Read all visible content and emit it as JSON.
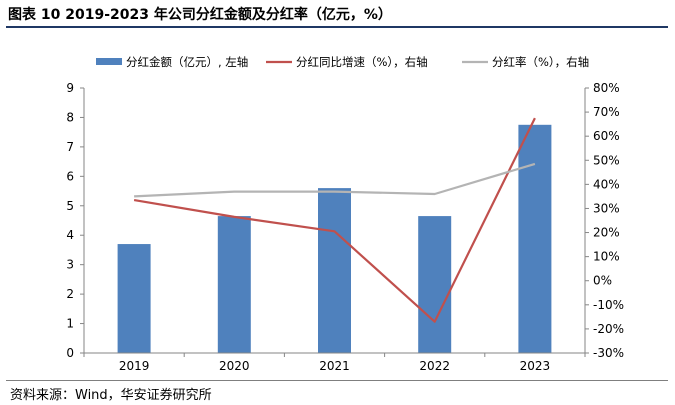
{
  "header": {
    "title": "图表 10  2019-2023 年公司分红金额及分红率（亿元，%）"
  },
  "footer": {
    "source": "资料来源：Wind，华安证券研究所"
  },
  "chart_data": {
    "type": "bar",
    "categories": [
      "2019",
      "2020",
      "2021",
      "2022",
      "2023"
    ],
    "series": [
      {
        "name": "分红金额（亿元）, 左轴",
        "type": "bar",
        "axis": "left",
        "color": "#4f81bd",
        "values": [
          3.7,
          4.65,
          5.6,
          4.65,
          7.75
        ]
      },
      {
        "name": "分红同比增速（%），右轴",
        "type": "line",
        "axis": "right",
        "color": "#c0504d",
        "values": [
          33.5,
          26.5,
          20.5,
          -17,
          67.5
        ]
      },
      {
        "name": "分红率（%），右轴",
        "type": "line",
        "axis": "right",
        "color": "#b4b4b4",
        "values": [
          35,
          37,
          37,
          36,
          48.5
        ]
      }
    ],
    "y_left": {
      "min": 0,
      "max": 9,
      "step": 1,
      "ticks": [
        "0",
        "1",
        "2",
        "3",
        "4",
        "5",
        "6",
        "7",
        "8",
        "9"
      ]
    },
    "y_right": {
      "min": -30,
      "max": 80,
      "step": 10,
      "ticks": [
        "-30%",
        "-20%",
        "-10%",
        "0%",
        "10%",
        "20%",
        "30%",
        "40%",
        "50%",
        "60%",
        "70%",
        "80%"
      ]
    },
    "legend_position": "top",
    "grid": false
  }
}
